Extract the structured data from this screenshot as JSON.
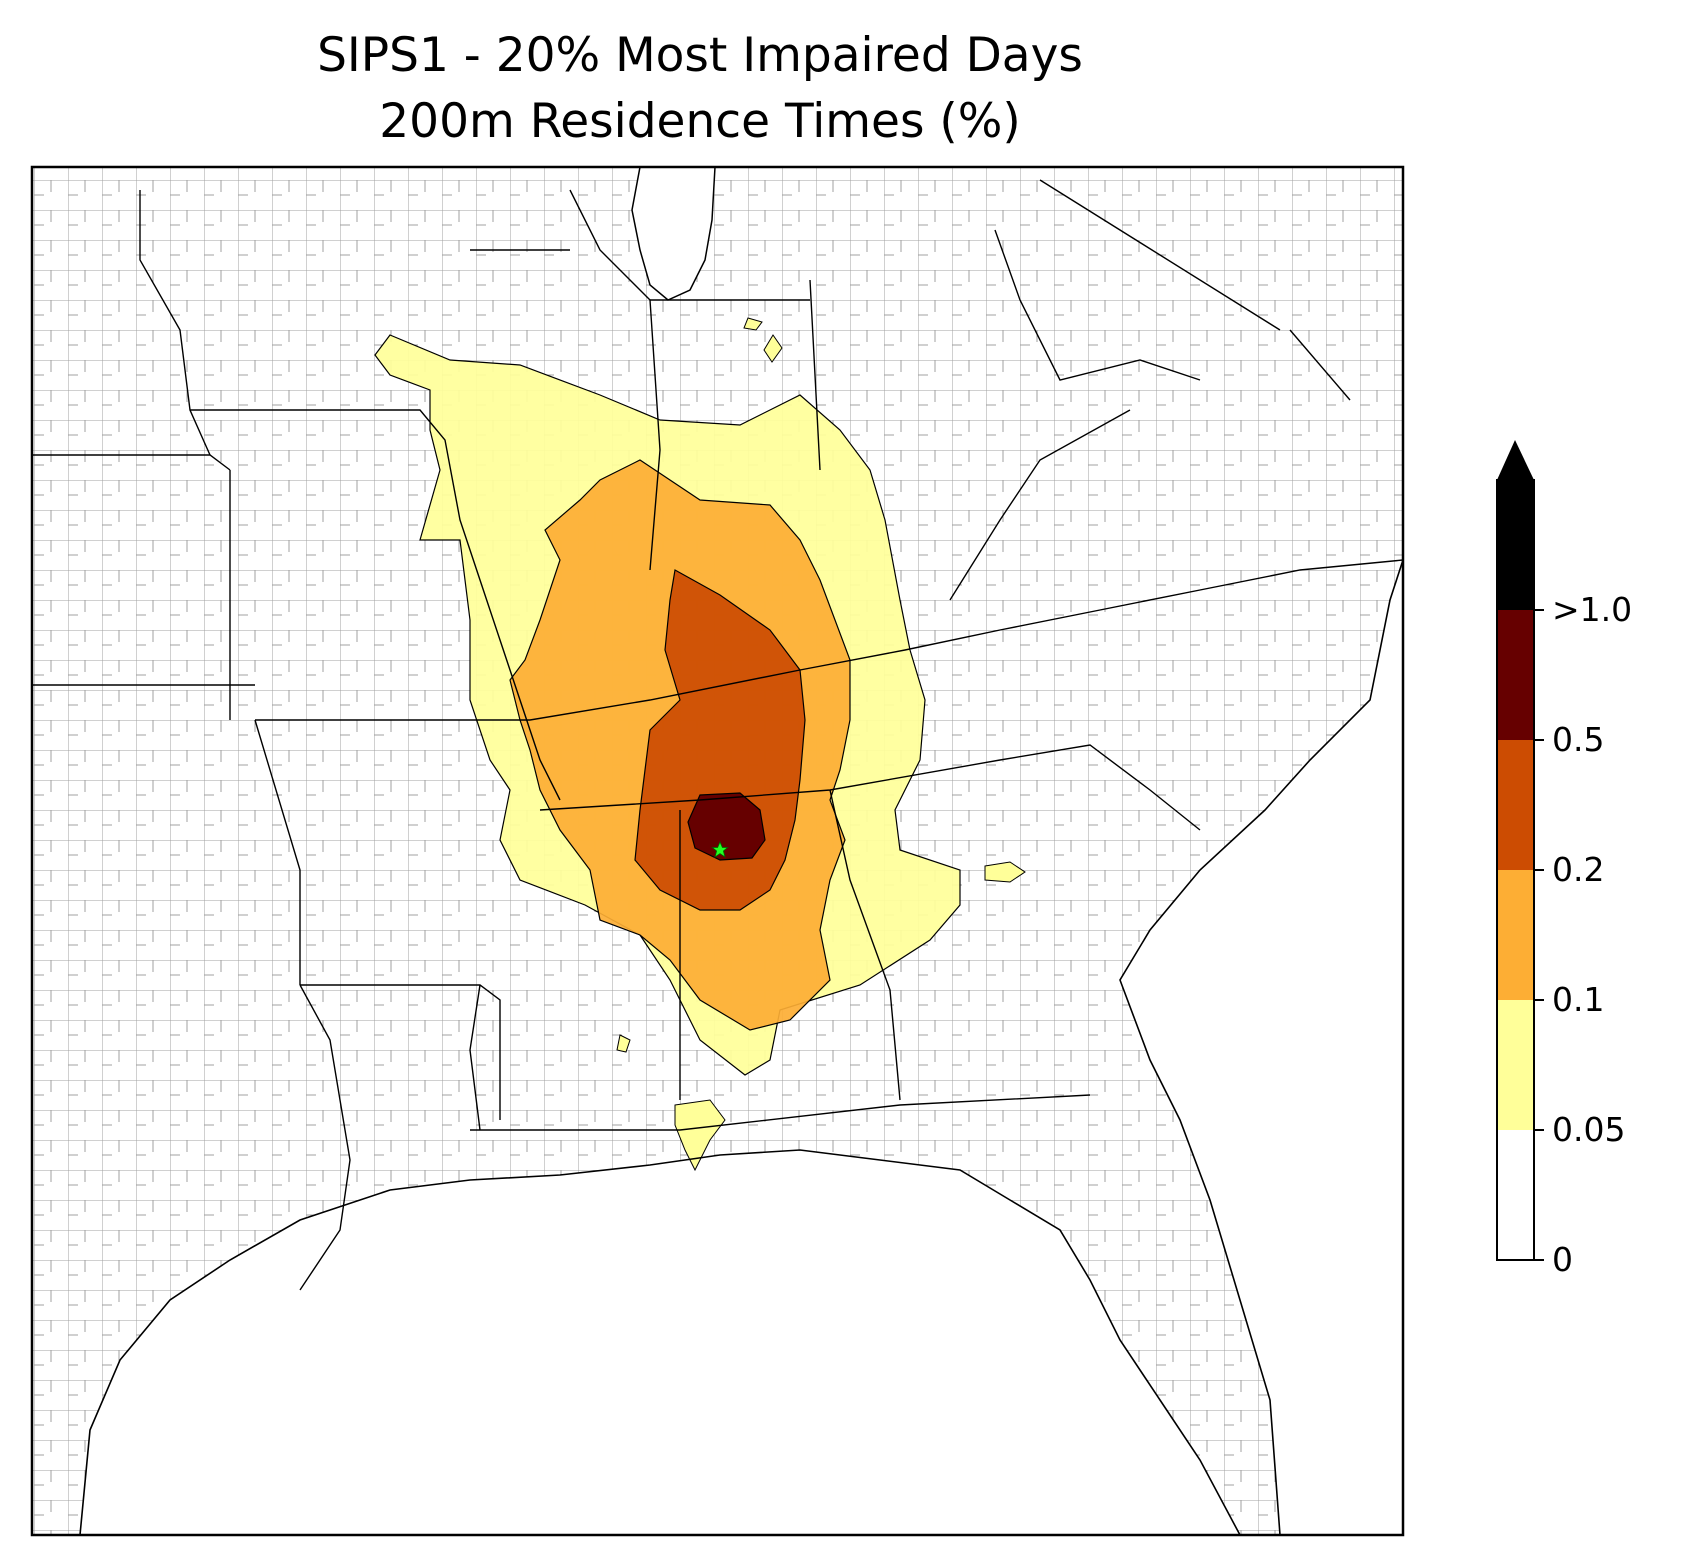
{
  "title": {
    "line1": "SIPS1 - 20% Most Impaired Days",
    "line2": "200m Residence Times (%)"
  },
  "colorbar": {
    "extend": "max",
    "bins": [
      {
        "from": "0",
        "to": "0.05",
        "color": "#ffffff"
      },
      {
        "from": "0.05",
        "to": "0.1",
        "color": "#ffff99"
      },
      {
        "from": "0.1",
        "to": "0.2",
        "color": "#fdae34"
      },
      {
        "from": "0.2",
        "to": "0.5",
        "color": "#cc4c02"
      },
      {
        "from": "0.5",
        "to": ">1.0",
        "color": "#660000"
      },
      {
        "from": ">1.0",
        "to": "",
        "color": "#000000"
      }
    ],
    "tick_labels": [
      "0",
      "0.05",
      "0.1",
      "0.2",
      "0.5",
      ">1.0"
    ]
  },
  "map": {
    "basemap_lines": "county-and-state-boundaries",
    "county_line_color": "#a0a0a0",
    "state_line_color": "#000000",
    "source_marker": {
      "shape": "star",
      "color": "#22ff22"
    }
  }
}
